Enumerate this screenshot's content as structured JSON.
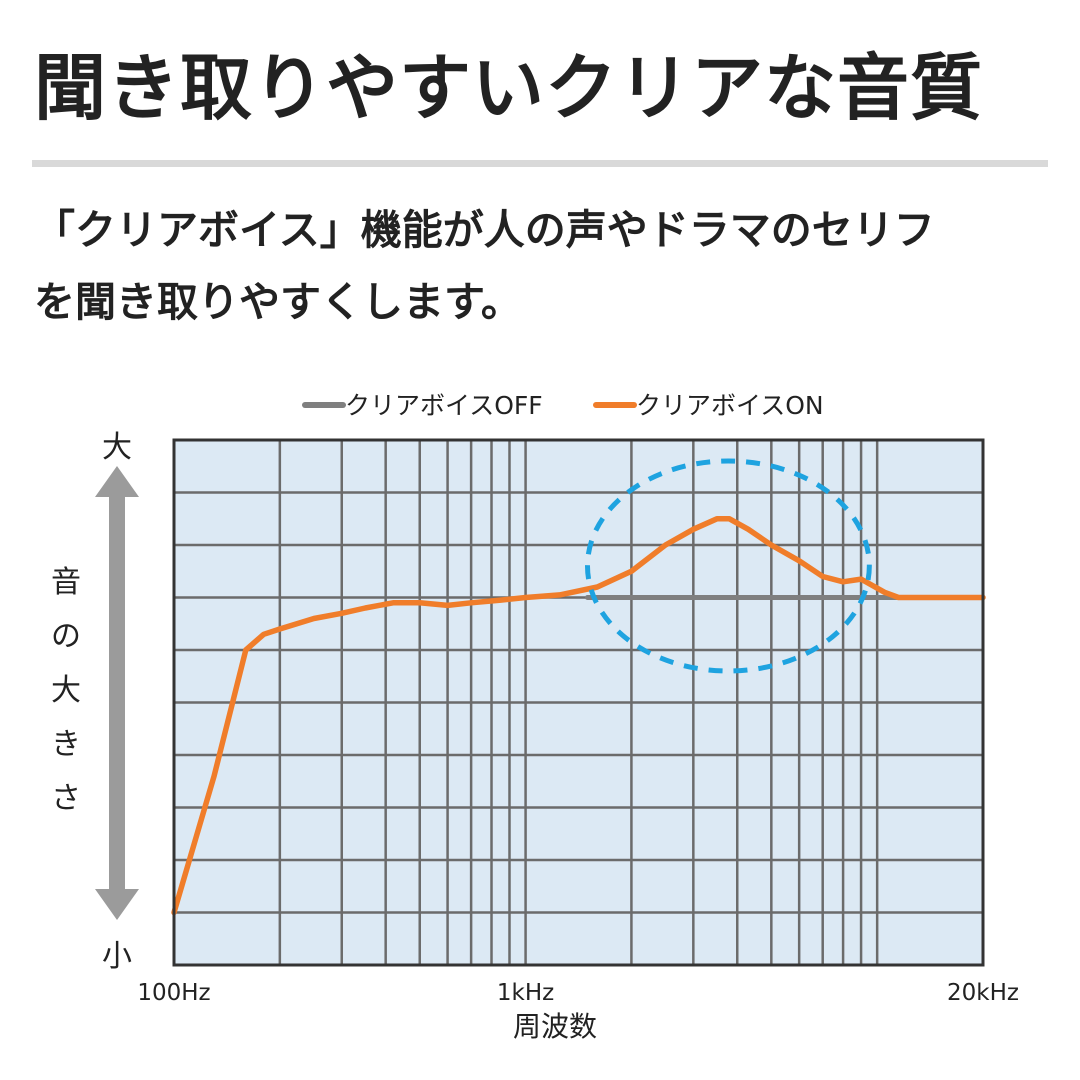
{
  "header": {
    "title": "聞き取りやすいクリアな音質"
  },
  "description": {
    "lines": [
      "「クリアボイス」機能が人の声やドラマのセリフ",
      "を聞き取りやすくします。"
    ]
  },
  "colors": {
    "on_line": "#f07d2a",
    "off_line": "#7f7f7f",
    "plot_background": "#dce9f4",
    "grid": "#6b6b6b",
    "highlight_ellipse": "#1ea3e0",
    "axis_arrow": "#9b9b9b"
  },
  "chart_data": {
    "type": "line",
    "title": "",
    "xlabel": "周波数",
    "ylabel": "音の大きさ",
    "x_scale": "log",
    "xlim": [
      100,
      20000
    ],
    "ylim": [
      0,
      10
    ],
    "x_tick_labels": [
      {
        "value": 100,
        "label": "100Hz"
      },
      {
        "value": 1000,
        "label": "1kHz"
      },
      {
        "value": 20000,
        "label": "20kHz"
      }
    ],
    "y_axis_labels": {
      "top": "大",
      "bottom": "小"
    },
    "grid": true,
    "legend": {
      "placement": "top-center",
      "entries": [
        {
          "name": "クリアボイスOFF",
          "color": "#7f7f7f"
        },
        {
          "name": "クリアボイスON",
          "color": "#f07d2a"
        }
      ]
    },
    "highlight": {
      "shape": "ellipse",
      "style": "dashed",
      "color": "#1ea3e0",
      "x_range": [
        1500,
        9500
      ],
      "y_range": [
        5.6,
        9.6
      ]
    },
    "series": [
      {
        "name": "クリアボイスOFF",
        "color": "#7f7f7f",
        "points": [
          [
            1500,
            7.0
          ],
          [
            2500,
            7.0
          ],
          [
            5000,
            7.0
          ],
          [
            8000,
            7.0
          ],
          [
            10000,
            7.0
          ],
          [
            20000,
            7.0
          ]
        ]
      },
      {
        "name": "クリアボイスON",
        "color": "#f07d2a",
        "points": [
          [
            100,
            1.0
          ],
          [
            130,
            3.6
          ],
          [
            160,
            6.0
          ],
          [
            180,
            6.3
          ],
          [
            200,
            6.4
          ],
          [
            250,
            6.6
          ],
          [
            300,
            6.7
          ],
          [
            350,
            6.8
          ],
          [
            420,
            6.9
          ],
          [
            500,
            6.9
          ],
          [
            600,
            6.85
          ],
          [
            700,
            6.9
          ],
          [
            850,
            6.95
          ],
          [
            1000,
            7.0
          ],
          [
            1250,
            7.05
          ],
          [
            1600,
            7.2
          ],
          [
            2000,
            7.5
          ],
          [
            2500,
            8.0
          ],
          [
            3000,
            8.3
          ],
          [
            3500,
            8.5
          ],
          [
            3800,
            8.5
          ],
          [
            4300,
            8.3
          ],
          [
            5000,
            8.0
          ],
          [
            6000,
            7.7
          ],
          [
            7000,
            7.4
          ],
          [
            8000,
            7.3
          ],
          [
            9000,
            7.35
          ],
          [
            10500,
            7.1
          ],
          [
            11500,
            7.0
          ],
          [
            15000,
            7.0
          ],
          [
            20000,
            7.0
          ]
        ]
      }
    ]
  }
}
